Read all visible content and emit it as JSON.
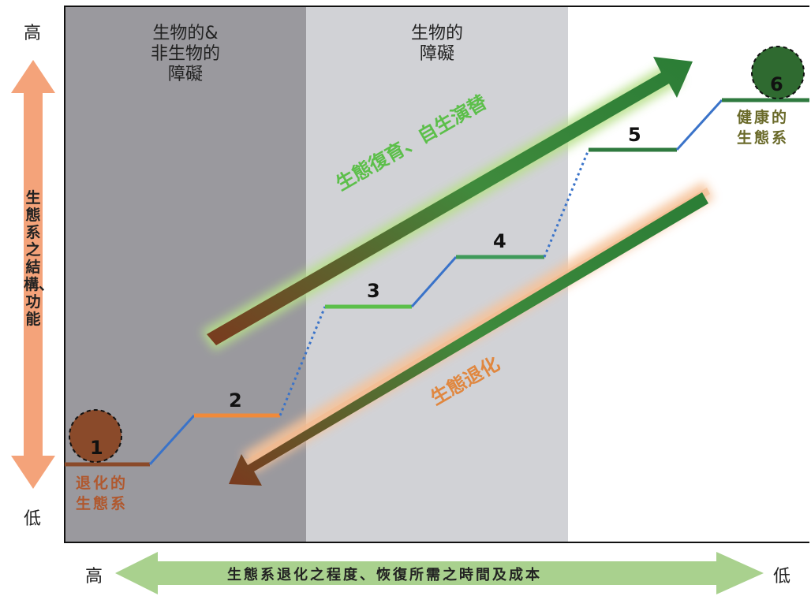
{
  "axes": {
    "y_high": "高",
    "y_low": "低",
    "y_label": "生態系之結構、功能",
    "x_high": "高",
    "x_low": "低",
    "x_label": "生態系退化之程度、恢復所需之時間及成本"
  },
  "zones": {
    "dark_label_line1": "生物的&",
    "dark_label_line2": "非生物的",
    "dark_label_line3": "障礙",
    "light_label_line1": "生物的",
    "light_label_line2": "障礙"
  },
  "stages": [
    "1",
    "2",
    "3",
    "4",
    "5",
    "6"
  ],
  "labels": {
    "degraded": "退化的生態系",
    "healthy": "健康的生態系"
  },
  "arrows": {
    "restoration": "生態復育、自生演替",
    "degradation": "生態退化"
  },
  "colors": {
    "dark_zone": "#9a999e",
    "light_zone": "#d1d2d6",
    "brown": "#8a4a2a",
    "orange": "#f08a3a",
    "light_green": "#5cbf4a",
    "mid_green": "#3f9a5a",
    "dark_green": "#2f7a3f",
    "blue_connector": "#3a73c9",
    "salmon_axis": "#f4a37a",
    "pale_green_axis": "#a9d18e"
  }
}
